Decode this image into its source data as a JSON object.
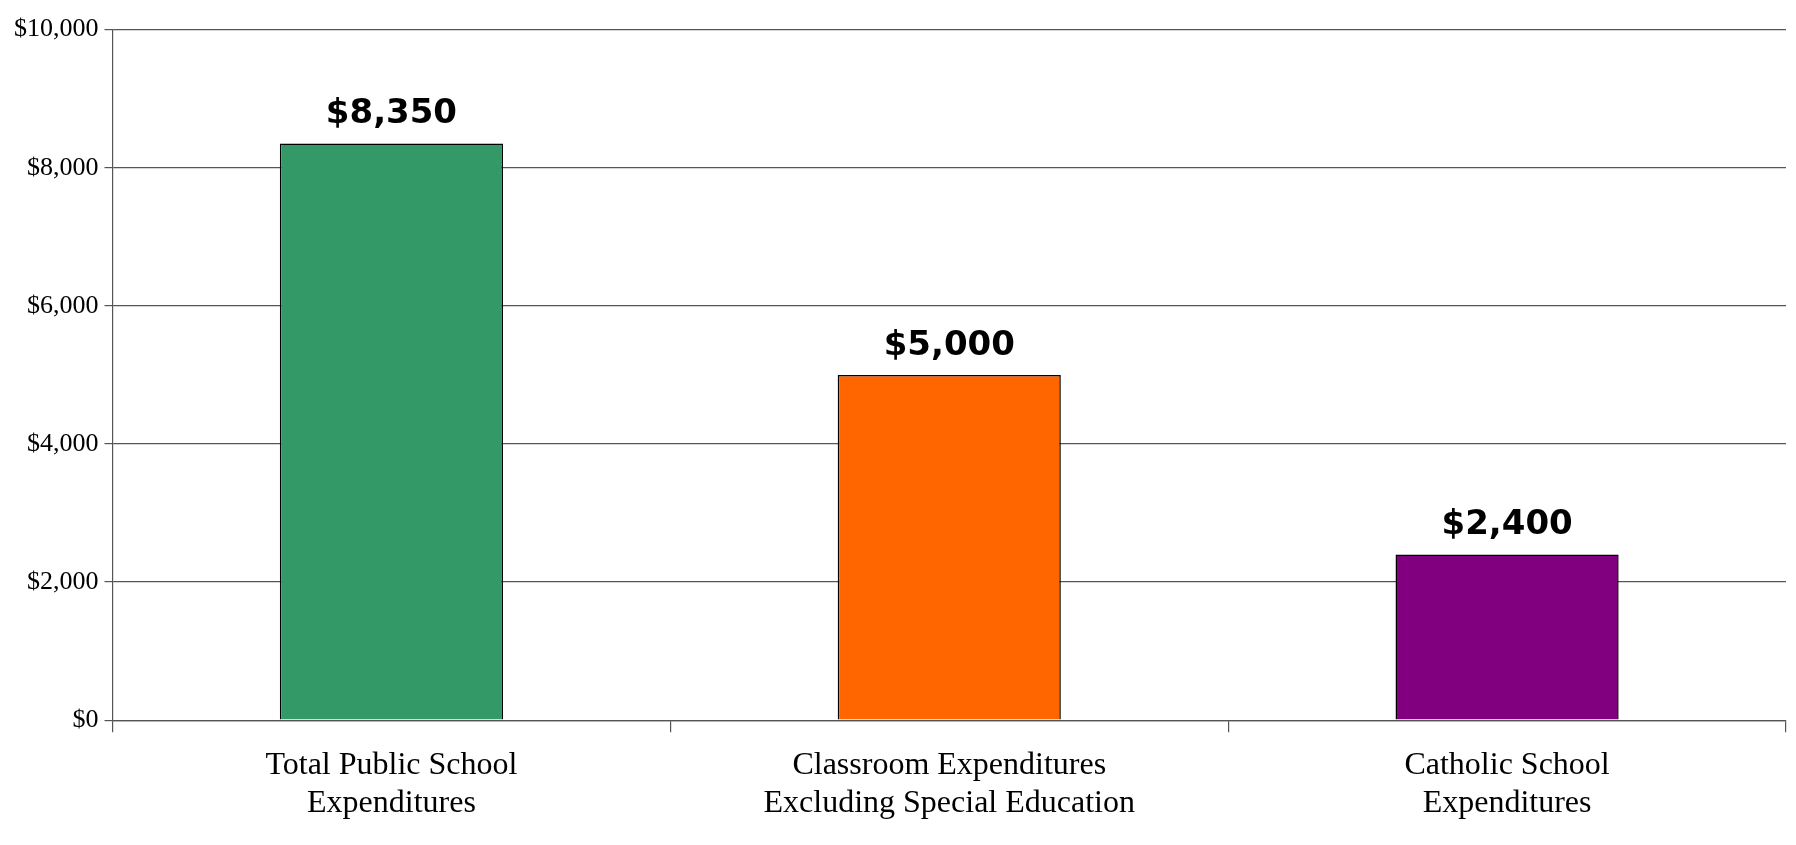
{
  "chart_data": {
    "type": "bar",
    "categories": [
      "Total Public School Expenditures",
      "Classroom Expenditures Excluding Special Education",
      "Catholic School Expenditures"
    ],
    "values": [
      8350,
      5000,
      2400
    ],
    "colors": [
      "#339966",
      "#ff6600",
      "#800080"
    ],
    "value_labels": [
      "$8,350",
      "$5,000",
      "$2,400"
    ],
    "ylim": [
      0,
      10000
    ],
    "yticks": [
      {
        "value": 0,
        "label": "$0"
      },
      {
        "value": 2000,
        "label": "$2,000"
      },
      {
        "value": 4000,
        "label": "$4,000"
      },
      {
        "value": 6000,
        "label": "$6,000"
      },
      {
        "value": 8000,
        "label": "$8,000"
      },
      {
        "value": 10000,
        "label": "$10,000"
      }
    ],
    "grid": "y",
    "legend": false
  }
}
